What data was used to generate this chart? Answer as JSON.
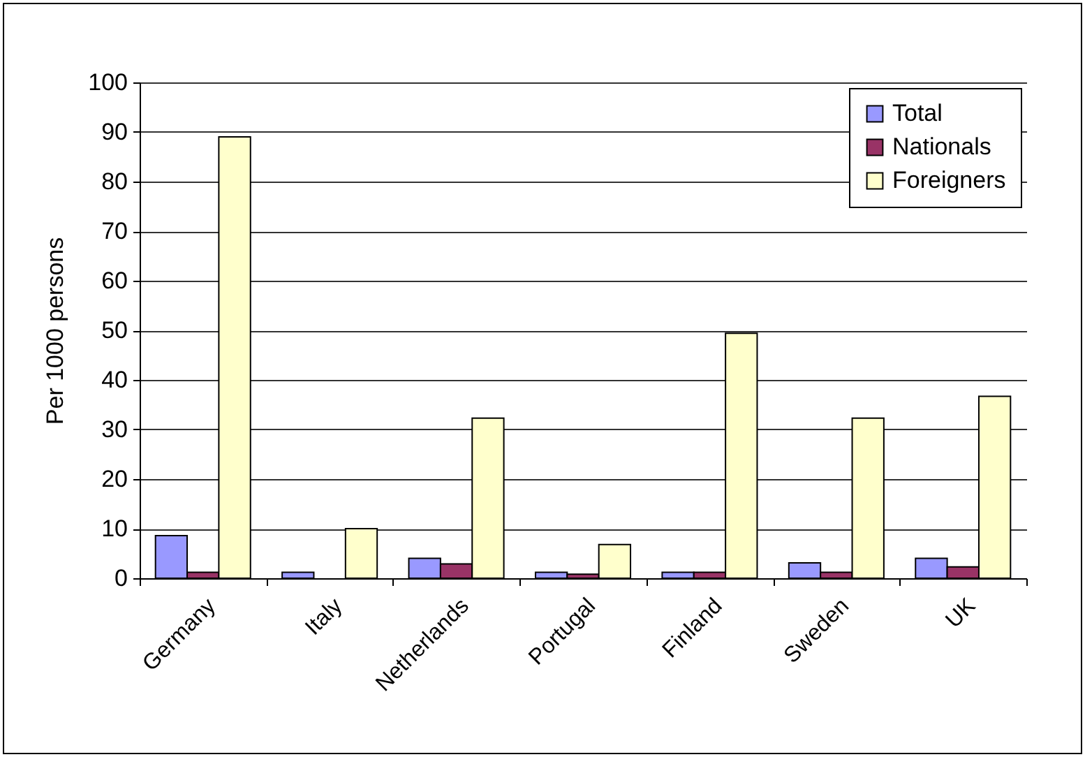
{
  "chart_data": {
    "type": "bar",
    "ylabel": "Per 1000 persons",
    "categories": [
      "Germany",
      "Italy",
      "Netherlands",
      "Portugal",
      "Finland",
      "Sweden",
      "UK"
    ],
    "series": [
      {
        "name": "Total",
        "color": "#9999ff",
        "values": [
          8.6,
          1.2,
          4.0,
          1.2,
          1.2,
          3.1,
          4.0
        ]
      },
      {
        "name": "Nationals",
        "color": "#993366",
        "values": [
          1.2,
          null,
          2.9,
          0.8,
          1.2,
          1.2,
          2.3
        ]
      },
      {
        "name": "Foreigners",
        "color": "#ffffcc",
        "values": [
          89.0,
          10.0,
          32.3,
          6.8,
          49.4,
          32.3,
          36.7
        ]
      }
    ],
    "ylim": [
      0,
      100
    ],
    "yticks": [
      0,
      10,
      20,
      30,
      40,
      50,
      60,
      70,
      80,
      90,
      100
    ],
    "grid": "y",
    "legend": "top right"
  }
}
